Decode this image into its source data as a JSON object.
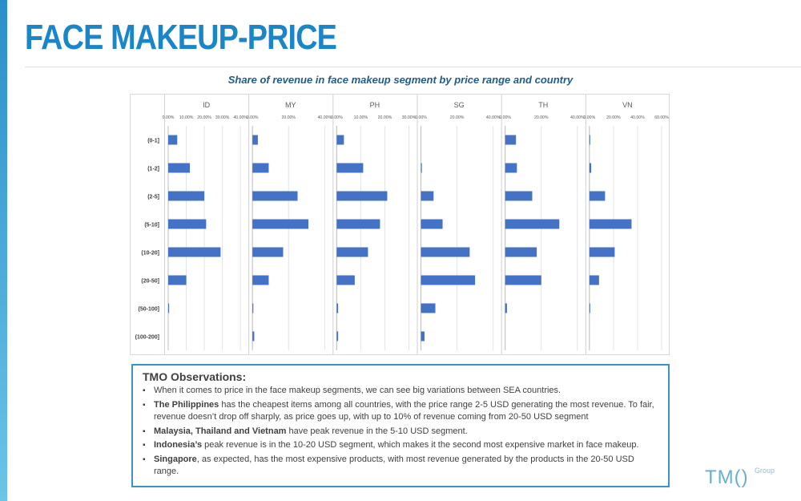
{
  "page": {
    "title": "FACE MAKEUP-PRICE"
  },
  "chart_data": {
    "type": "bar",
    "orientation": "horizontal",
    "title": "Share of revenue in face makeup segment by price range and country",
    "categories": [
      "(0-1]",
      "(1-2]",
      "(2-5]",
      "(5-10]",
      "(10-20]",
      "(20-50]",
      "(50-100]",
      "(100-200]"
    ],
    "bar_color": "#4472c4",
    "panels": [
      {
        "name": "ID",
        "xlim": [
          0,
          0.4
        ],
        "ticks": [
          0,
          0.1,
          0.2,
          0.3,
          0.4
        ],
        "tick_labels": [
          "0.00%",
          "10.00%",
          "20.00%",
          "30.00%",
          "40.00%"
        ],
        "values": [
          0.05,
          0.12,
          0.2,
          0.21,
          0.29,
          0.1,
          0.005,
          0
        ]
      },
      {
        "name": "MY",
        "xlim": [
          0,
          0.4
        ],
        "ticks": [
          0,
          0.2,
          0.4
        ],
        "tick_labels": [
          "0.00%",
          "20.00%",
          "40.00%"
        ],
        "values": [
          0.03,
          0.09,
          0.25,
          0.31,
          0.17,
          0.09,
          0.005,
          0.01
        ]
      },
      {
        "name": "PH",
        "xlim": [
          0,
          0.3
        ],
        "ticks": [
          0,
          0.1,
          0.2,
          0.3
        ],
        "tick_labels": [
          "0.00%",
          "10.00%",
          "20.00%",
          "30.00%"
        ],
        "values": [
          0.03,
          0.11,
          0.21,
          0.18,
          0.13,
          0.075,
          0.006,
          0.006
        ]
      },
      {
        "name": "SG",
        "xlim": [
          0,
          0.4
        ],
        "ticks": [
          0,
          0.2,
          0.4
        ],
        "tick_labels": [
          "0.00%",
          "20.00%",
          "40.00%"
        ],
        "values": [
          0,
          0.005,
          0.07,
          0.12,
          0.27,
          0.3,
          0.08,
          0.02
        ]
      },
      {
        "name": "TH",
        "xlim": [
          0,
          0.4
        ],
        "ticks": [
          0,
          0.2,
          0.4
        ],
        "tick_labels": [
          "0.00%",
          "20.00%",
          "40.00%"
        ],
        "values": [
          0.06,
          0.065,
          0.15,
          0.3,
          0.175,
          0.2,
          0.01,
          0
        ]
      },
      {
        "name": "VN",
        "xlim": [
          0,
          0.6
        ],
        "ticks": [
          0,
          0.2,
          0.4,
          0.6
        ],
        "tick_labels": [
          "0.00%",
          "20.00%",
          "40.00%",
          "60.00%"
        ],
        "values": [
          0.005,
          0.015,
          0.13,
          0.35,
          0.21,
          0.08,
          0.002,
          0
        ]
      }
    ]
  },
  "observations": {
    "heading": "TMO Observations:",
    "bullet": "▪",
    "items": [
      {
        "bold": "",
        "text": "When it comes to price in the face makeup segments, we can see big variations between SEA countries."
      },
      {
        "bold": "The Philippines",
        "text": " has the cheapest items among all countries, with the price range 2-5 USD generating the most revenue. To fair, revenue doesn’t drop off sharply, as price goes up, with up to 10% of revenue coming from 20-50 USD segment"
      },
      {
        "bold": "Malaysia, Thailand and Vietnam",
        "text": " have peak revenue in the 5-10 USD segment."
      },
      {
        "bold": "Indonesia’s",
        "text": " peak revenue is in the 10-20 USD segment, which makes it the second most expensive market in face makeup."
      },
      {
        "bold": "Singapore",
        "text": ", as expected, has the most expensive products, with most revenue generated by the products in the 20-50 USD range."
      }
    ]
  },
  "logo": {
    "text": "TM()",
    "suffix": "Group"
  }
}
